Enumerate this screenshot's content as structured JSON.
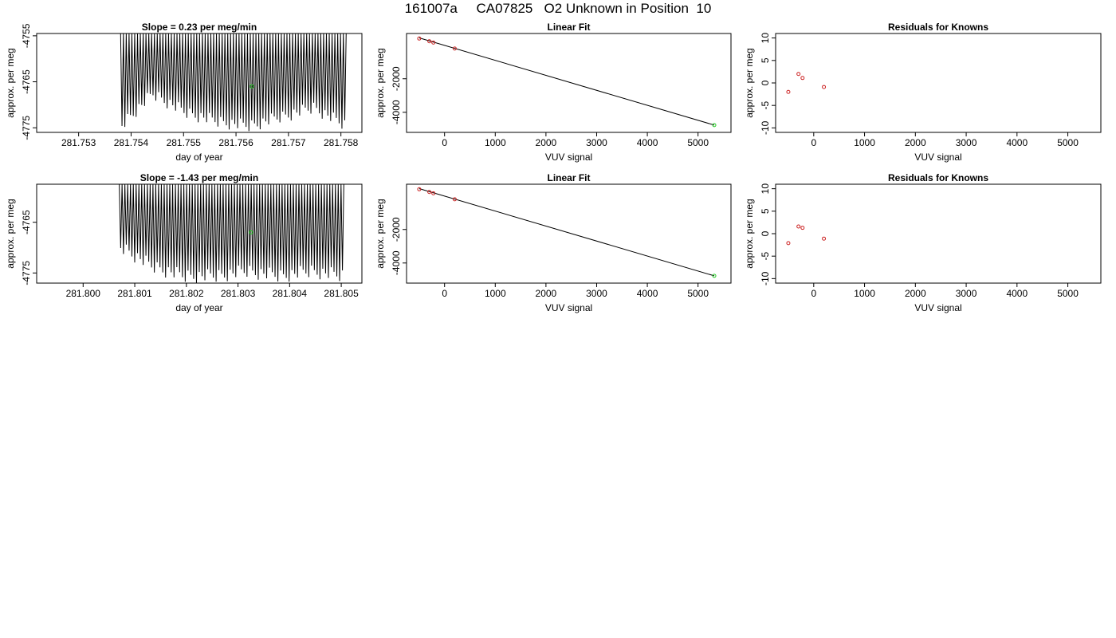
{
  "page": {
    "title": "161007a     CA07825   O2 Unknown in Position  10"
  },
  "colors": {
    "trace": "#000000",
    "known_points": "#cc2222",
    "unknown_point": "#22cc22",
    "frame": "#000000"
  },
  "chart_data": [
    {
      "type": "line",
      "title": "Slope =  0.23  per meg/min",
      "xlabel": "day of year",
      "ylabel": "approx. per meg",
      "xlim": [
        281.7522,
        281.7584
      ],
      "ylim": [
        -4776,
        -4754.5
      ],
      "xticks": [
        281.753,
        281.754,
        281.755,
        281.756,
        281.757,
        281.758
      ],
      "xtick_labels": [
        "281.753",
        "281.754",
        "281.755",
        "281.756",
        "281.757",
        "281.758"
      ],
      "yticks": [
        -4755,
        -4765,
        -4775
      ],
      "ytick_labels": [
        "-4755",
        "-4765",
        "-4775"
      ],
      "x_range": [
        281.7538,
        281.7581
      ],
      "oscillation_low": [
        -4776,
        -4769,
        -4773,
        -4775,
        -4776,
        -4774,
        -4772,
        -4776
      ],
      "oscillation_high": [
        -4754.5,
        -4754.5,
        -4754.5,
        -4754.5,
        -4754.5,
        -4754.5,
        -4754.5,
        -4754.5
      ],
      "n_cycles": 80,
      "marker": {
        "x": 281.7563,
        "y": -4766
      }
    },
    {
      "type": "scatter",
      "title": "Linear Fit",
      "xlabel": "VUV signal",
      "ylabel": "approx. per meg",
      "xlim": [
        -750,
        5650
      ],
      "ylim": [
        -5200,
        700
      ],
      "xticks": [
        0,
        1000,
        2000,
        3000,
        4000,
        5000
      ],
      "xtick_labels": [
        "0",
        "1000",
        "2000",
        "3000",
        "4000",
        "5000"
      ],
      "yticks": [
        -2000,
        -4000
      ],
      "ytick_labels": [
        "-2000",
        "-4000"
      ],
      "known_points": {
        "x": [
          -500,
          -300,
          -220,
          200
        ],
        "y": [
          400,
          235,
          160,
          -200
        ]
      },
      "unknown_point": {
        "x": 5320,
        "y": -4765
      },
      "fit_line": {
        "x": [
          -500,
          5320
        ],
        "y": [
          440,
          -4765
        ]
      }
    },
    {
      "type": "scatter",
      "title": "Residuals for Knowns",
      "xlabel": "VUV signal",
      "ylabel": "approx. per meg",
      "xlim": [
        -750,
        5650
      ],
      "ylim": [
        -11,
        11
      ],
      "xticks": [
        0,
        1000,
        2000,
        3000,
        4000,
        5000
      ],
      "xtick_labels": [
        "0",
        "1000",
        "2000",
        "3000",
        "4000",
        "5000"
      ],
      "yticks": [
        10,
        5,
        0,
        -5,
        -10
      ],
      "ytick_labels": [
        "10",
        "5",
        "0",
        "-5",
        "-10"
      ],
      "points": {
        "x": [
          -500,
          -300,
          -220,
          200
        ],
        "y": [
          -2,
          2,
          1.1,
          -0.9
        ]
      }
    },
    {
      "type": "line",
      "title": "Slope =  -1.43  per meg/min",
      "xlabel": "day of year",
      "ylabel": "approx. per meg",
      "xlim": [
        281.7991,
        281.8054
      ],
      "ylim": [
        -4777,
        -4757.5
      ],
      "xticks": [
        281.8,
        281.801,
        281.802,
        281.803,
        281.804,
        281.805
      ],
      "xtick_labels": [
        "281.800",
        "281.801",
        "281.802",
        "281.803",
        "281.804",
        "281.805"
      ],
      "yticks": [
        -4765,
        -4775
      ],
      "ytick_labels": [
        "-4765",
        "-4775"
      ],
      "x_range": [
        281.8007,
        281.80505
      ],
      "oscillation_low": [
        -4771,
        -4775,
        -4777,
        -4777,
        -4776,
        -4777,
        -4776,
        -4777
      ],
      "oscillation_high": [
        -4757.5,
        -4757.5,
        -4757.5,
        -4757.5,
        -4757.5,
        -4757.5,
        -4757.5,
        -4757.5
      ],
      "n_cycles": 80,
      "marker": {
        "x": 281.80325,
        "y": -4767
      }
    },
    {
      "type": "scatter",
      "title": "Linear Fit",
      "xlabel": "VUV signal",
      "ylabel": "approx. per meg",
      "xlim": [
        -750,
        5650
      ],
      "ylim": [
        -5200,
        700
      ],
      "xticks": [
        0,
        1000,
        2000,
        3000,
        4000,
        5000
      ],
      "xtick_labels": [
        "0",
        "1000",
        "2000",
        "3000",
        "4000",
        "5000"
      ],
      "yticks": [
        -2000,
        -4000
      ],
      "ytick_labels": [
        "-2000",
        "-4000"
      ],
      "known_points": {
        "x": [
          -500,
          -300,
          -220,
          200
        ],
        "y": [
          400,
          235,
          160,
          -200
        ]
      },
      "unknown_point": {
        "x": 5320,
        "y": -4767
      },
      "fit_line": {
        "x": [
          -500,
          5320
        ],
        "y": [
          440,
          -4767
        ]
      }
    },
    {
      "type": "scatter",
      "title": "Residuals for Knowns",
      "xlabel": "VUV signal",
      "ylabel": "approx. per meg",
      "xlim": [
        -750,
        5650
      ],
      "ylim": [
        -11,
        11
      ],
      "xticks": [
        0,
        1000,
        2000,
        3000,
        4000,
        5000
      ],
      "xtick_labels": [
        "0",
        "1000",
        "2000",
        "3000",
        "4000",
        "5000"
      ],
      "yticks": [
        10,
        5,
        0,
        -5,
        -10
      ],
      "ytick_labels": [
        "10",
        "5",
        "0",
        "-5",
        "-10"
      ],
      "points": {
        "x": [
          -500,
          -300,
          -220,
          200
        ],
        "y": [
          -2.1,
          1.6,
          1.3,
          -1.1
        ]
      }
    }
  ]
}
